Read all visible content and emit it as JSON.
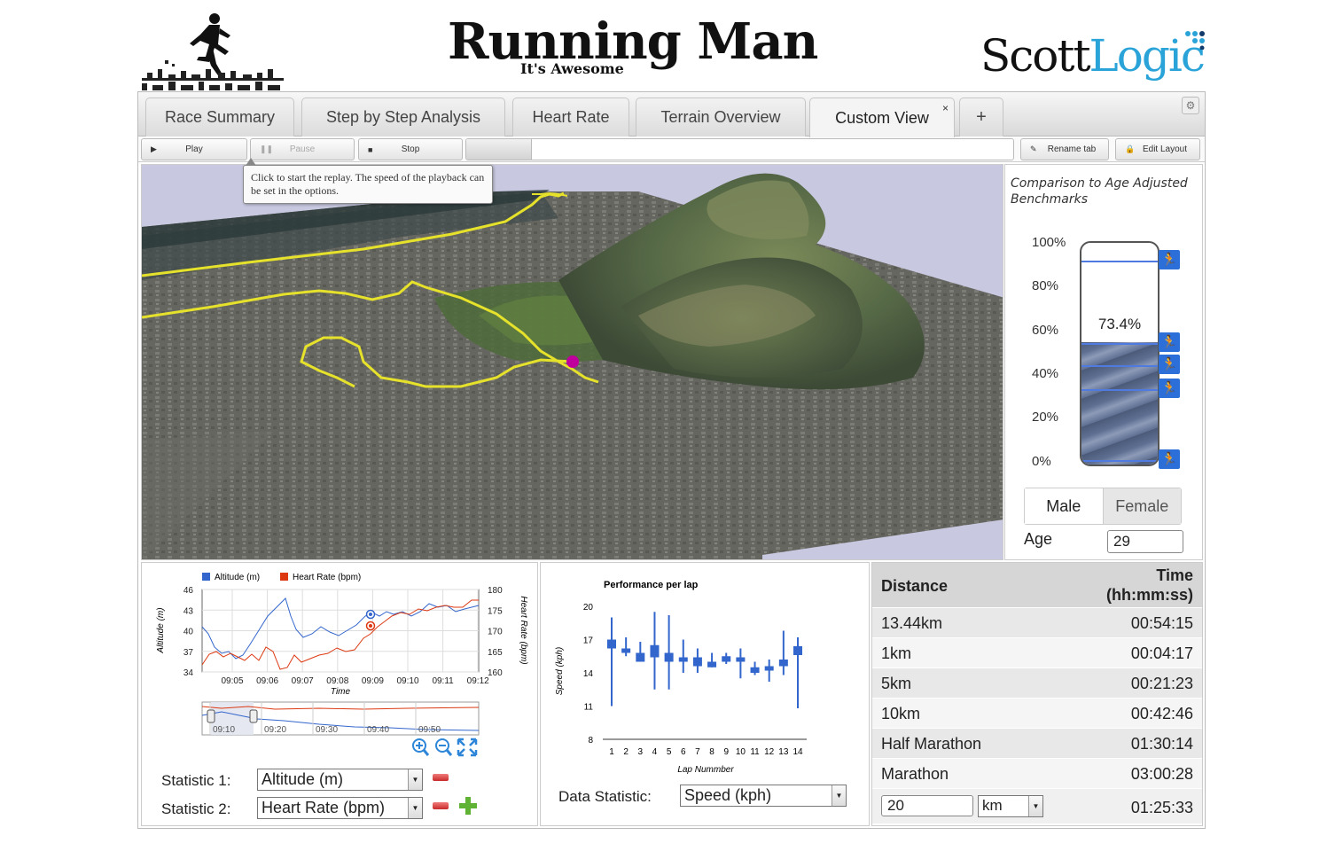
{
  "header": {
    "title": "Running Man",
    "subtitle": "It's Awesome",
    "company_part1": "Scott",
    "company_part2": "Logic"
  },
  "tabs": [
    {
      "label": "Race Summary",
      "active": false
    },
    {
      "label": "Step by Step Analysis",
      "active": false
    },
    {
      "label": "Heart Rate",
      "active": false
    },
    {
      "label": "Terrain Overview",
      "active": false
    },
    {
      "label": "Custom View",
      "active": true
    }
  ],
  "tab_add_label": "+",
  "tab_close_label": "×",
  "toolbar": {
    "play_label": "Play",
    "pause_label": "Pause",
    "stop_label": "Stop",
    "rename_label": "Rename tab",
    "edit_layout_label": "Edit Layout",
    "progress_fraction": 0.12
  },
  "tooltip": {
    "text": "Click to start the replay. The speed of the playback can be set in the options."
  },
  "benchmark": {
    "title": "Comparison to Age Adjusted Benchmarks",
    "ticks": [
      "100%",
      "80%",
      "60%",
      "40%",
      "20%",
      "0%"
    ],
    "value_label": "73.4%",
    "value": 73.4,
    "markers": [
      92,
      55,
      45,
      34,
      2
    ],
    "gender_male": "Male",
    "gender_female": "Female",
    "selected_gender": "Male",
    "age_label": "Age",
    "age_value": "29"
  },
  "stat_chart": {
    "legend": [
      "Altitude (m)",
      "Heart Rate (bpm)"
    ],
    "y_left_label": "Altitude (m)",
    "y_right_label": "Heart Rate (bpm)",
    "x_label": "Time",
    "y_left_ticks": [
      "46",
      "43",
      "40",
      "37",
      "34"
    ],
    "y_right_ticks": [
      "180",
      "175",
      "170",
      "165",
      "160"
    ],
    "x_ticks": [
      "09:05",
      "09:06",
      "09:07",
      "09:08",
      "09:09",
      "09:10",
      "09:11",
      "09:12"
    ],
    "nav_ticks": [
      "09:10",
      "09:20",
      "09:30",
      "09:40",
      "09:50"
    ],
    "statistic1_label": "Statistic 1:",
    "statistic1_value": "Altitude (m)",
    "statistic2_label": "Statistic 2:",
    "statistic2_value": "Heart Rate (bpm)",
    "colors": {
      "altitude": "#3366cc",
      "heart": "#dc3912"
    }
  },
  "chart_data": {
    "type": "candlestick",
    "title": "Performance per lap",
    "xlabel": "Lap Nummber",
    "ylabel": "Speed (kph)",
    "ylim": [
      8,
      20
    ],
    "y_ticks": [
      "20",
      "17",
      "14",
      "11",
      "8"
    ],
    "categories": [
      "1",
      "2",
      "3",
      "4",
      "5",
      "6",
      "7",
      "8",
      "9",
      "10",
      "11",
      "12",
      "13",
      "14"
    ],
    "low": [
      11.0,
      15.5,
      15.0,
      12.5,
      12.5,
      14.0,
      14.0,
      14.5,
      14.8,
      13.5,
      13.8,
      13.2,
      13.8,
      10.8
    ],
    "high": [
      19.0,
      17.2,
      16.8,
      19.5,
      19.2,
      17.0,
      16.2,
      15.8,
      15.8,
      16.2,
      15.0,
      15.2,
      17.8,
      17.2
    ],
    "open": [
      17.0,
      16.2,
      15.8,
      16.5,
      15.8,
      15.4,
      15.4,
      15.0,
      15.5,
      15.4,
      14.5,
      14.6,
      15.2,
      16.4
    ],
    "close": [
      16.2,
      15.8,
      15.0,
      15.4,
      15.0,
      15.0,
      14.6,
      14.5,
      15.0,
      15.0,
      14.0,
      14.2,
      14.6,
      15.6
    ],
    "color": "#3366cc",
    "data_statistic_label": "Data Statistic:",
    "data_statistic_value": "Speed (kph)"
  },
  "distance_table": {
    "header_distance": "Distance",
    "header_time": "Time\n(hh:mm:ss)",
    "rows": [
      {
        "distance": "13.44km",
        "time": "00:54:15"
      },
      {
        "distance": "1km",
        "time": "00:04:17"
      },
      {
        "distance": "5km",
        "time": "00:21:23"
      },
      {
        "distance": "10km",
        "time": "00:42:46"
      },
      {
        "distance": "Half Marathon",
        "time": "01:30:14"
      },
      {
        "distance": "Marathon",
        "time": "03:00:28"
      }
    ],
    "custom_distance": "20",
    "custom_unit": "km",
    "custom_time": "01:25:33"
  }
}
